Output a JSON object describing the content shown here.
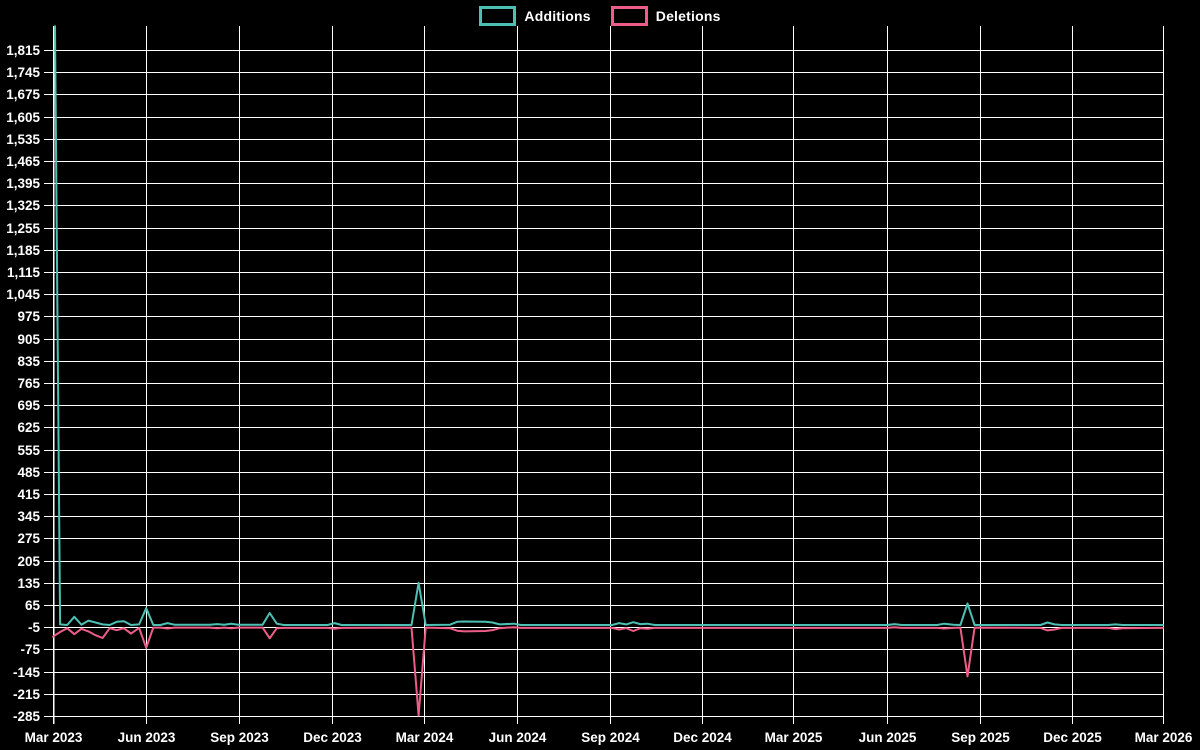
{
  "legend": {
    "items": [
      {
        "id": "additions",
        "label": "Additions",
        "color": "#4cc0b2"
      },
      {
        "id": "deletions",
        "label": "Deletions",
        "color": "#ee5d88"
      }
    ]
  },
  "colors": {
    "background": "#000000",
    "gridline": "#ffffff",
    "tick_text": "#ffffff",
    "additions": "#4cc0b2",
    "deletions": "#ee5d88"
  },
  "chart_data": {
    "type": "line",
    "title": "",
    "xlabel": "",
    "ylabel": "",
    "grid": true,
    "legend_position": "top-center",
    "x_axis": {
      "unit": "days since 2023-03-01",
      "range_days": 1096,
      "tick_days": [
        0,
        92,
        184,
        275,
        366,
        458,
        550,
        641,
        731,
        823,
        915,
        1006,
        1096
      ],
      "tick_labels": [
        "Mar 2023",
        "Jun 2023",
        "Sep 2023",
        "Dec 2023",
        "Mar 2024",
        "Jun 2024",
        "Sep 2024",
        "Dec 2024",
        "Mar 2025",
        "Jun 2025",
        "Sep 2025",
        "Dec 2025",
        "Mar 2026"
      ]
    },
    "y_axis": {
      "tick_min": -285,
      "tick_max": 1815,
      "tick_step": 70,
      "ylim": [
        -307,
        1891
      ]
    },
    "series": [
      {
        "name": "Additions",
        "color": "#4cc0b2",
        "points": [
          [
            2,
            1890
          ],
          [
            7,
            4
          ],
          [
            14,
            2
          ],
          [
            21,
            28
          ],
          [
            28,
            3
          ],
          [
            35,
            16
          ],
          [
            42,
            10
          ],
          [
            49,
            4
          ],
          [
            56,
            2
          ],
          [
            63,
            12
          ],
          [
            70,
            14
          ],
          [
            77,
            2
          ],
          [
            85,
            4
          ],
          [
            92,
            55
          ],
          [
            99,
            2
          ],
          [
            106,
            2
          ],
          [
            113,
            8
          ],
          [
            120,
            3
          ],
          [
            155,
            3
          ],
          [
            162,
            5
          ],
          [
            169,
            3
          ],
          [
            176,
            6
          ],
          [
            183,
            3
          ],
          [
            207,
            3
          ],
          [
            214,
            40
          ],
          [
            221,
            6
          ],
          [
            228,
            2
          ],
          [
            271,
            2
          ],
          [
            278,
            8
          ],
          [
            285,
            2
          ],
          [
            354,
            2
          ],
          [
            361,
            135
          ],
          [
            368,
            2
          ],
          [
            392,
            3
          ],
          [
            399,
            12
          ],
          [
            406,
            13
          ],
          [
            427,
            12
          ],
          [
            434,
            10
          ],
          [
            441,
            4
          ],
          [
            455,
            6
          ],
          [
            462,
            2
          ],
          [
            552,
            2
          ],
          [
            559,
            8
          ],
          [
            566,
            4
          ],
          [
            573,
            11
          ],
          [
            580,
            5
          ],
          [
            587,
            6
          ],
          [
            594,
            2
          ],
          [
            824,
            2
          ],
          [
            831,
            5
          ],
          [
            838,
            2
          ],
          [
            873,
            2
          ],
          [
            880,
            6
          ],
          [
            889,
            3
          ],
          [
            896,
            2
          ],
          [
            903,
            70
          ],
          [
            910,
            2
          ],
          [
            975,
            2
          ],
          [
            982,
            10
          ],
          [
            989,
            4
          ],
          [
            996,
            2
          ],
          [
            1042,
            2
          ],
          [
            1049,
            4
          ],
          [
            1056,
            2
          ],
          [
            1096,
            2
          ]
        ]
      },
      {
        "name": "Deletions",
        "color": "#ee5d88",
        "points": [
          [
            0,
            -35
          ],
          [
            7,
            -20
          ],
          [
            14,
            -8
          ],
          [
            21,
            -27
          ],
          [
            28,
            -10
          ],
          [
            35,
            -18
          ],
          [
            42,
            -30
          ],
          [
            49,
            -39
          ],
          [
            56,
            -8
          ],
          [
            63,
            -14
          ],
          [
            70,
            -8
          ],
          [
            77,
            -25
          ],
          [
            85,
            -7
          ],
          [
            92,
            -70
          ],
          [
            99,
            -6
          ],
          [
            106,
            -6
          ],
          [
            113,
            -9
          ],
          [
            120,
            -6
          ],
          [
            155,
            -6
          ],
          [
            162,
            -8
          ],
          [
            169,
            -6
          ],
          [
            176,
            -8
          ],
          [
            183,
            -6
          ],
          [
            207,
            -6
          ],
          [
            214,
            -40
          ],
          [
            221,
            -8
          ],
          [
            228,
            -7
          ],
          [
            271,
            -7
          ],
          [
            278,
            -10
          ],
          [
            285,
            -7
          ],
          [
            354,
            -6
          ],
          [
            361,
            -283
          ],
          [
            368,
            -6
          ],
          [
            392,
            -8
          ],
          [
            399,
            -16
          ],
          [
            406,
            -18
          ],
          [
            427,
            -17
          ],
          [
            434,
            -14
          ],
          [
            441,
            -8
          ],
          [
            455,
            -5
          ],
          [
            462,
            -7
          ],
          [
            552,
            -7
          ],
          [
            559,
            -12
          ],
          [
            566,
            -8
          ],
          [
            573,
            -17
          ],
          [
            580,
            -8
          ],
          [
            587,
            -10
          ],
          [
            594,
            -7
          ],
          [
            824,
            -7
          ],
          [
            831,
            -5
          ],
          [
            838,
            -7
          ],
          [
            873,
            -7
          ],
          [
            880,
            -9
          ],
          [
            889,
            -7
          ],
          [
            896,
            -6
          ],
          [
            903,
            -160
          ],
          [
            910,
            -6
          ],
          [
            975,
            -7
          ],
          [
            982,
            -15
          ],
          [
            989,
            -12
          ],
          [
            996,
            -7
          ],
          [
            1042,
            -7
          ],
          [
            1049,
            -11
          ],
          [
            1056,
            -8
          ],
          [
            1096,
            -7
          ]
        ]
      }
    ]
  }
}
